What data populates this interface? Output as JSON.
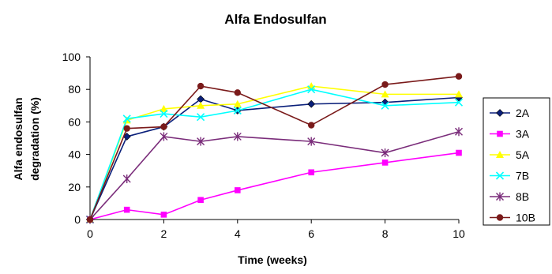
{
  "chart_data": {
    "type": "line",
    "title": "Alfa Endosulfan",
    "xlabel": "Time (weeks)",
    "ylabel_lines": [
      "Alfa endosulfan",
      "degradation (%)"
    ],
    "x": [
      0,
      1,
      2,
      3,
      4,
      6,
      8,
      10
    ],
    "xlim": [
      0,
      10
    ],
    "ylim": [
      0,
      100
    ],
    "xticks": [
      "0",
      "2",
      "4",
      "6",
      "8",
      "10"
    ],
    "yticks": [
      "0",
      "20",
      "40",
      "60",
      "80",
      "100"
    ],
    "grid": false,
    "legend_position": "right",
    "series": [
      {
        "name": "2A",
        "color": "#0a1f7a",
        "marker": "diamond",
        "values": [
          0,
          51,
          57,
          74,
          67,
          71,
          72,
          75
        ]
      },
      {
        "name": "3A",
        "color": "#ff00ff",
        "marker": "square",
        "values": [
          0,
          6,
          3,
          12,
          18,
          29,
          35,
          41
        ]
      },
      {
        "name": "5A",
        "color": "#ffff00",
        "marker": "triangle",
        "values": [
          0,
          61,
          68,
          70,
          71,
          82,
          77,
          77
        ]
      },
      {
        "name": "7B",
        "color": "#00ffff",
        "marker": "x",
        "values": [
          0,
          62,
          65,
          63,
          67,
          80,
          70,
          72
        ]
      },
      {
        "name": "8B",
        "color": "#7a2c7a",
        "marker": "asterisk",
        "values": [
          0,
          25,
          51,
          48,
          51,
          48,
          41,
          54
        ]
      },
      {
        "name": "10B",
        "color": "#7a1a1a",
        "marker": "circle",
        "values": [
          0,
          56,
          57,
          82,
          78,
          58,
          83,
          88
        ]
      }
    ]
  }
}
